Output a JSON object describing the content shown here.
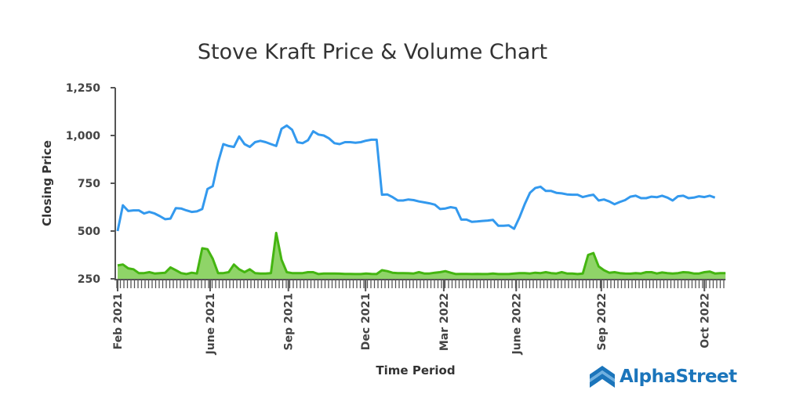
{
  "chart_data": {
    "type": "line",
    "title": "Stove Kraft Price & Volume Chart",
    "xlabel": "Time Period",
    "ylabel": "Closing Price",
    "ylim": [
      250,
      1250
    ],
    "yticks": [
      "250",
      "500",
      "750",
      "1,000",
      "1,250"
    ],
    "ytick_values": [
      250,
      500,
      750,
      1000,
      1250
    ],
    "xtick_labels": [
      "Feb 2021",
      "June 2021",
      "Sep 2021",
      "Dec 2021",
      "Mar 2022",
      "June 2022",
      "Sep 2022",
      "Oct 2022"
    ],
    "xtick_index": [
      0,
      17.5,
      32.3,
      46.9,
      61.7,
      75.4,
      91.5,
      111
    ],
    "series": [
      {
        "name": "Price",
        "type": "line",
        "color": "#3399ee",
        "values": [
          500,
          635,
          605,
          608,
          608,
          592,
          600,
          592,
          578,
          562,
          565,
          620,
          618,
          608,
          600,
          603,
          615,
          720,
          735,
          860,
          955,
          945,
          940,
          995,
          955,
          940,
          965,
          972,
          965,
          955,
          945,
          1035,
          1052,
          1030,
          965,
          960,
          975,
          1022,
          1005,
          1000,
          985,
          960,
          955,
          965,
          965,
          962,
          965,
          973,
          978,
          978,
          690,
          692,
          678,
          660,
          660,
          665,
          662,
          655,
          650,
          645,
          638,
          615,
          618,
          625,
          620,
          560,
          560,
          548,
          550,
          553,
          555,
          558,
          528,
          528,
          530,
          512,
          570,
          640,
          700,
          725,
          732,
          710,
          710,
          700,
          697,
          692,
          690,
          690,
          678,
          685,
          690,
          660,
          665,
          655,
          640,
          652,
          662,
          680,
          685,
          672,
          672,
          680,
          677,
          685,
          675,
          660,
          682,
          685,
          672,
          675,
          682,
          678,
          685,
          675
        ]
      },
      {
        "name": "Volume",
        "type": "area",
        "color": "#44b511",
        "fill": "#8fd468",
        "values": [
          320,
          325,
          305,
          300,
          280,
          280,
          285,
          278,
          280,
          282,
          310,
          295,
          280,
          275,
          282,
          278,
          410,
          405,
          355,
          280,
          280,
          285,
          325,
          300,
          285,
          300,
          280,
          278,
          278,
          280,
          490,
          350,
          285,
          280,
          280,
          280,
          285,
          285,
          275,
          278,
          278,
          278,
          277,
          276,
          276,
          275,
          275,
          278,
          276,
          275,
          295,
          290,
          282,
          280,
          280,
          279,
          278,
          285,
          278,
          278,
          282,
          285,
          290,
          282,
          275,
          276,
          276,
          275,
          276,
          275,
          275,
          278,
          275,
          275,
          275,
          278,
          280,
          280,
          278,
          282,
          280,
          285,
          280,
          278,
          285,
          278,
          278,
          275,
          278,
          375,
          385,
          315,
          295,
          282,
          285,
          280,
          278,
          277,
          280,
          278,
          285,
          285,
          278,
          283,
          280,
          278,
          280,
          285,
          283,
          278,
          278,
          285,
          288,
          278,
          280,
          280
        ]
      }
    ]
  },
  "brand": {
    "name": "AlphaStreet",
    "color": "#1b75bb"
  }
}
